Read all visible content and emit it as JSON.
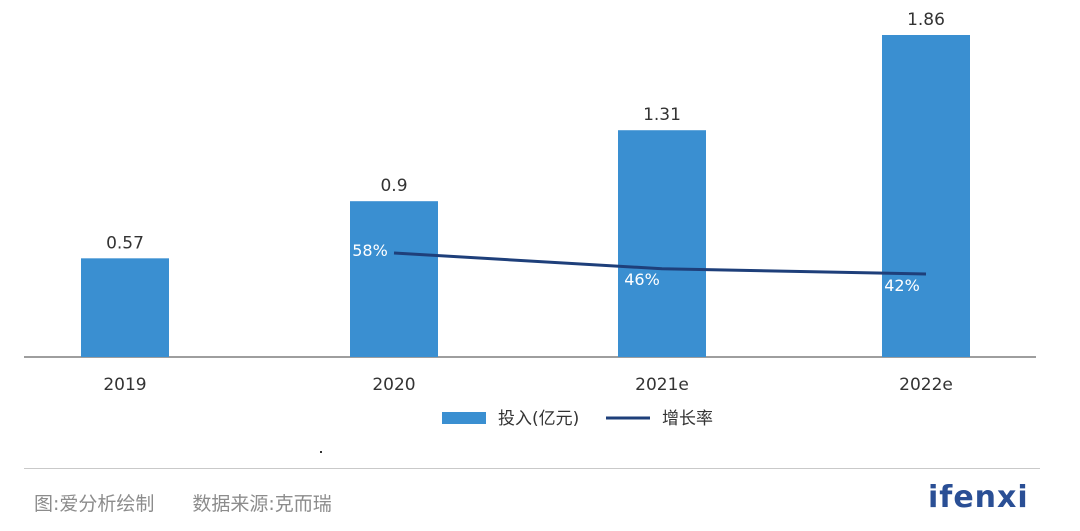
{
  "chart_data": {
    "type": "bar",
    "categories": [
      "2019",
      "2020",
      "2021e",
      "2022e"
    ],
    "series": [
      {
        "name": "投入(亿元)",
        "kind": "bar",
        "values": [
          0.57,
          0.9,
          1.31,
          1.86
        ],
        "labels": [
          "0.57",
          "0.9",
          "1.31",
          "1.86"
        ],
        "color": "#3a8fd1"
      },
      {
        "name": "增长率",
        "kind": "line",
        "values": [
          null,
          58,
          46,
          42
        ],
        "labels": [
          "",
          "58%",
          "46%",
          "42%"
        ],
        "color": "#1e3f7a"
      }
    ],
    "ylim": [
      0,
      2
    ],
    "legend_position": "bottom",
    "grid": false
  },
  "footer": {
    "source_left": "图:爱分析绘制",
    "source_right": "数据来源:克而瑞",
    "logo_text": "ifenxi"
  }
}
